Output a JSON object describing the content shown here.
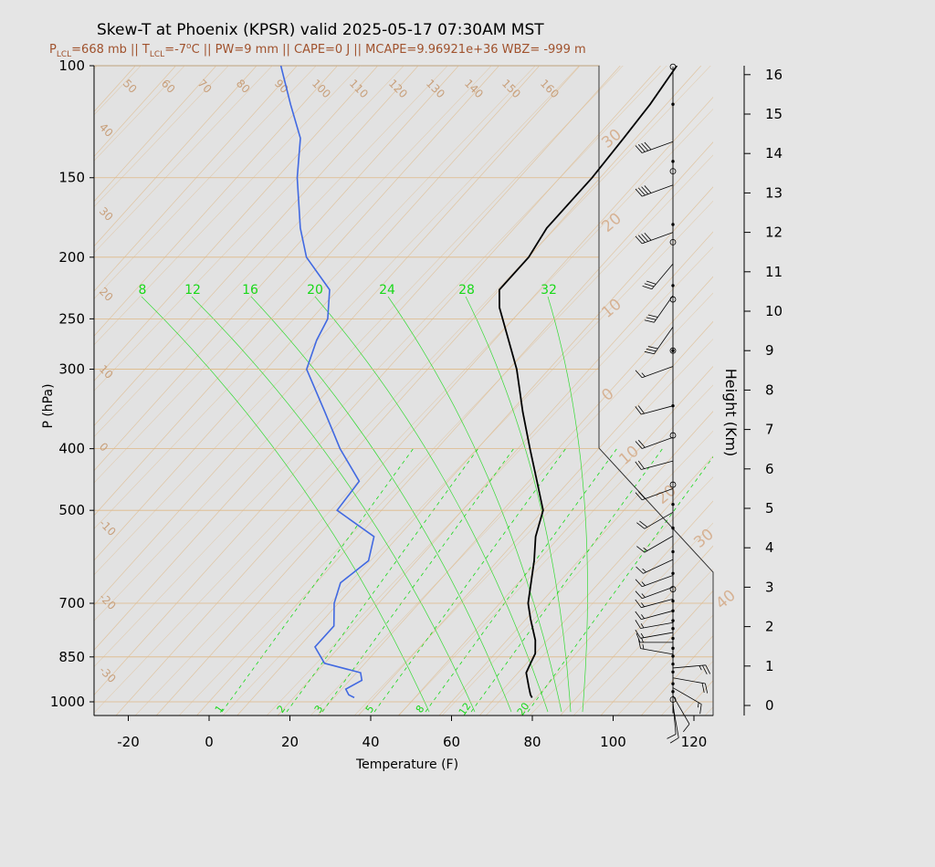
{
  "title": "Skew-T at Phoenix (KPSR) valid 2025-05-17 07:30AM MST",
  "subtitle": {
    "plcl_p": "P",
    "plcl_sub": "LCL",
    "plcl_val": "=668 mb || T",
    "tlcl_sub": "LCL",
    "tlcl_val": "=-7",
    "deg_o": "o",
    "rest": "C || PW=9 mm || CAPE=0 J || MCAPE=9.96921e+36 WBZ= -999 m"
  },
  "colors": {
    "background": "#e5e5e5",
    "isotherm": "#deb887",
    "mixing_ratio": "#18d818",
    "temperature": "#000000",
    "dewpoint": "#4169e1",
    "wind": "#000000"
  },
  "chart_data": {
    "type": "skew-t",
    "title": "Skew-T at Phoenix (KPSR) valid 2025-05-17 07:30AM MST",
    "xlabel": "Temperature (F)",
    "ylabel": "P (hPa)",
    "y2label": "Height (Km)",
    "xlim": [
      -28,
      125
    ],
    "ylim_hpa": [
      1050,
      100
    ],
    "x_ticks": [
      "-20",
      "0",
      "20",
      "40",
      "60",
      "80",
      "100",
      "120"
    ],
    "x_tick_values": [
      -20,
      0,
      20,
      40,
      60,
      80,
      100,
      120
    ],
    "p_ticks": [
      "100",
      "150",
      "200",
      "250",
      "300",
      "400",
      "500",
      "700",
      "850",
      "1000"
    ],
    "p_tick_values": [
      100,
      150,
      200,
      250,
      300,
      400,
      500,
      700,
      850,
      1000
    ],
    "height_ticks": [
      "0",
      "1",
      "2",
      "3",
      "4",
      "5",
      "6",
      "7",
      "8",
      "9",
      "10",
      "11",
      "12",
      "13",
      "14",
      "15",
      "16"
    ],
    "isotherm_labels_top": [
      "50",
      "60",
      "70",
      "80",
      "90",
      "100",
      "110",
      "120",
      "130",
      "140",
      "150",
      "160"
    ],
    "isotherm_labels_left": [
      "40",
      "30",
      "20",
      "10",
      "0",
      "-10",
      "-20",
      "-30"
    ],
    "mixing_labels_upper": [
      "8",
      "12",
      "16",
      "20",
      "24",
      "28",
      "32"
    ],
    "mixing_labels_lower": [
      "1",
      "2",
      "3",
      "5",
      "8",
      "12",
      "20"
    ],
    "right_scale_labels": [
      "30",
      "20",
      "10",
      "0",
      "10",
      "20",
      "30",
      "40"
    ],
    "series": [
      {
        "name": "",
        "role": "temperature",
        "points": [
          {
            "p": 985,
            "t": 79
          },
          {
            "p": 975,
            "t": 78
          },
          {
            "p": 950,
            "t": 76
          },
          {
            "p": 900,
            "t": 72
          },
          {
            "p": 870,
            "t": 71
          },
          {
            "p": 840,
            "t": 70
          },
          {
            "p": 800,
            "t": 67
          },
          {
            "p": 740,
            "t": 61
          },
          {
            "p": 700,
            "t": 57
          },
          {
            "p": 600,
            "t": 49
          },
          {
            "p": 550,
            "t": 44
          },
          {
            "p": 500,
            "t": 40
          },
          {
            "p": 450,
            "t": 32
          },
          {
            "p": 400,
            "t": 23
          },
          {
            "p": 350,
            "t": 13
          },
          {
            "p": 300,
            "t": 2
          },
          {
            "p": 265,
            "t": -8
          },
          {
            "p": 240,
            "t": -16
          },
          {
            "p": 225,
            "t": -20
          },
          {
            "p": 200,
            "t": -20
          },
          {
            "p": 180,
            "t": -22
          },
          {
            "p": 150,
            "t": -22
          },
          {
            "p": 130,
            "t": -23
          },
          {
            "p": 115,
            "t": -24
          },
          {
            "p": 100,
            "t": -26
          }
        ]
      },
      {
        "name": "",
        "role": "dewpoint",
        "points": [
          {
            "p": 985,
            "t": 35
          },
          {
            "p": 975,
            "t": 33
          },
          {
            "p": 955,
            "t": 31
          },
          {
            "p": 925,
            "t": 33
          },
          {
            "p": 900,
            "t": 31
          },
          {
            "p": 870,
            "t": 20
          },
          {
            "p": 820,
            "t": 14
          },
          {
            "p": 760,
            "t": 14
          },
          {
            "p": 700,
            "t": 9
          },
          {
            "p": 650,
            "t": 6
          },
          {
            "p": 600,
            "t": 8
          },
          {
            "p": 550,
            "t": 4
          },
          {
            "p": 500,
            "t": -11
          },
          {
            "p": 450,
            "t": -12
          },
          {
            "p": 400,
            "t": -24
          },
          {
            "p": 350,
            "t": -36
          },
          {
            "p": 300,
            "t": -50
          },
          {
            "p": 270,
            "t": -54
          },
          {
            "p": 250,
            "t": -56
          },
          {
            "p": 225,
            "t": -62
          },
          {
            "p": 200,
            "t": -75
          },
          {
            "p": 180,
            "t": -83
          },
          {
            "p": 150,
            "t": -95
          },
          {
            "p": 130,
            "t": -103
          },
          {
            "p": 115,
            "t": -113
          },
          {
            "p": 100,
            "t": -124
          }
        ]
      }
    ],
    "wind_barbs": [
      {
        "h": 0.0,
        "spd": 10,
        "dir": 170
      },
      {
        "h": 0.1,
        "spd": 10,
        "dir": 175
      },
      {
        "h": 0.25,
        "spd": 10,
        "dir": 150
      },
      {
        "h": 0.45,
        "spd": 15,
        "dir": 120
      },
      {
        "h": 0.7,
        "spd": 20,
        "dir": 100
      },
      {
        "h": 0.95,
        "spd": 25,
        "dir": 85
      },
      {
        "h": 1.3,
        "spd": 15,
        "dir": 280
      },
      {
        "h": 1.6,
        "spd": 15,
        "dir": 270
      },
      {
        "h": 1.85,
        "spd": 15,
        "dir": 260
      },
      {
        "h": 2.1,
        "spd": 15,
        "dir": 260
      },
      {
        "h": 2.4,
        "spd": 15,
        "dir": 255
      },
      {
        "h": 2.7,
        "spd": 15,
        "dir": 255
      },
      {
        "h": 3.0,
        "spd": 15,
        "dir": 250
      },
      {
        "h": 3.3,
        "spd": 15,
        "dir": 250
      },
      {
        "h": 3.7,
        "spd": 15,
        "dir": 245
      },
      {
        "h": 4.3,
        "spd": 15,
        "dir": 240
      },
      {
        "h": 4.9,
        "spd": 20,
        "dir": 240
      },
      {
        "h": 5.5,
        "spd": 20,
        "dir": 250
      },
      {
        "h": 6.2,
        "spd": 20,
        "dir": 255
      },
      {
        "h": 6.8,
        "spd": 20,
        "dir": 250
      },
      {
        "h": 7.6,
        "spd": 20,
        "dir": 255
      },
      {
        "h": 8.6,
        "spd": 15,
        "dir": 250
      },
      {
        "h": 9.6,
        "spd": 30,
        "dir": 215
      },
      {
        "h": 10.4,
        "spd": 30,
        "dir": 215
      },
      {
        "h": 11.2,
        "spd": 30,
        "dir": 220
      },
      {
        "h": 12.0,
        "spd": 40,
        "dir": 250
      },
      {
        "h": 13.2,
        "spd": 40,
        "dir": 250
      },
      {
        "h": 14.3,
        "spd": 40,
        "dir": 250
      }
    ],
    "wind_markers": [
      {
        "h": 0.15,
        "kind": "circle"
      },
      {
        "h": 0.35,
        "kind": "dot"
      },
      {
        "h": 0.55,
        "kind": "dot"
      },
      {
        "h": 0.85,
        "kind": "dot"
      },
      {
        "h": 1.05,
        "kind": "dot"
      },
      {
        "h": 1.25,
        "kind": "dot"
      },
      {
        "h": 1.45,
        "kind": "dot"
      },
      {
        "h": 1.7,
        "kind": "dot"
      },
      {
        "h": 1.95,
        "kind": "dot"
      },
      {
        "h": 2.15,
        "kind": "dot"
      },
      {
        "h": 2.4,
        "kind": "dot"
      },
      {
        "h": 2.65,
        "kind": "dot"
      },
      {
        "h": 2.95,
        "kind": "circle"
      },
      {
        "h": 3.35,
        "kind": "dot"
      },
      {
        "h": 3.9,
        "kind": "dot"
      },
      {
        "h": 4.5,
        "kind": "dot"
      },
      {
        "h": 5.1,
        "kind": "dot"
      },
      {
        "h": 5.6,
        "kind": "circle"
      },
      {
        "h": 6.85,
        "kind": "circle"
      },
      {
        "h": 7.6,
        "kind": "dot"
      },
      {
        "h": 9.0,
        "kind": "circle"
      },
      {
        "h": 9.0,
        "kind": "dot"
      },
      {
        "h": 10.3,
        "kind": "circle"
      },
      {
        "h": 10.65,
        "kind": "dot"
      },
      {
        "h": 11.75,
        "kind": "circle"
      },
      {
        "h": 12.2,
        "kind": "dot"
      },
      {
        "h": 13.55,
        "kind": "circle"
      },
      {
        "h": 13.8,
        "kind": "dot"
      },
      {
        "h": 15.25,
        "kind": "dot"
      },
      {
        "h": 16.2,
        "kind": "circle"
      }
    ]
  }
}
